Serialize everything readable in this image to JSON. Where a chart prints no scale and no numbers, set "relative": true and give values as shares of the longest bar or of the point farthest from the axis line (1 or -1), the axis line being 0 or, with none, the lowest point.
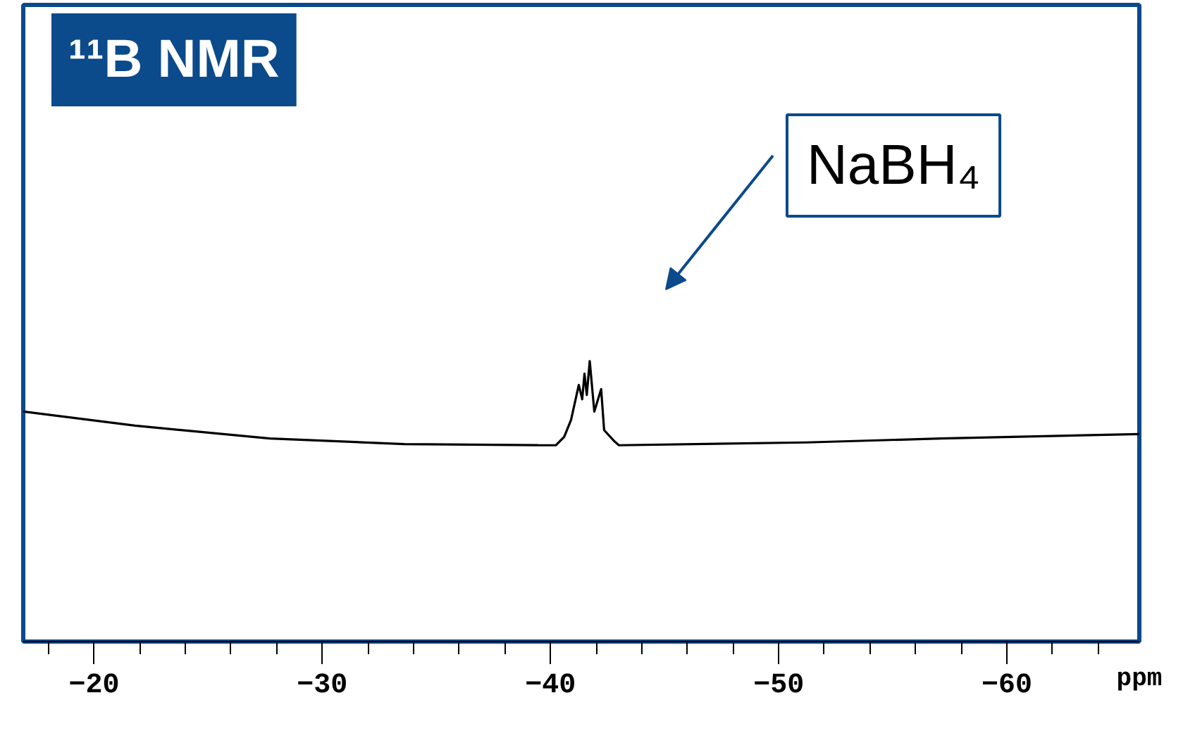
{
  "chart_data": {
    "type": "line",
    "title": "¹¹B NMR",
    "xlabel": "ppm",
    "relative": true,
    "xlim": [
      -16.9,
      -65.8
    ],
    "xticks": [
      {
        "value": -18,
        "label": null
      },
      -20,
      {
        "value": -22,
        "label": null
      },
      {
        "value": -24,
        "label": null
      },
      {
        "value": -26,
        "label": null
      },
      {
        "value": -28,
        "label": null
      },
      -30,
      {
        "value": -32,
        "label": null
      },
      {
        "value": -34,
        "label": null
      },
      {
        "value": -36,
        "label": null
      },
      {
        "value": -38,
        "label": null
      },
      -40,
      {
        "value": -42,
        "label": null
      },
      {
        "value": -44,
        "label": null
      },
      {
        "value": -46,
        "label": null
      },
      {
        "value": -48,
        "label": null
      },
      -50,
      {
        "value": -52,
        "label": null
      },
      {
        "value": -54,
        "label": null
      },
      {
        "value": -56,
        "label": null
      },
      {
        "value": -58,
        "label": null
      },
      -60,
      {
        "value": -62,
        "label": null
      },
      {
        "value": -64,
        "label": null
      }
    ],
    "annotations": [
      "NaBH₄"
    ],
    "series": [
      {
        "color": "#000000",
        "x": [
          -16.9,
          -21.8,
          -27.7,
          -33.6,
          -39.5,
          -40.24,
          -40.6,
          -40.9,
          -41.24,
          -41.39,
          -41.49,
          -41.59,
          -41.72,
          -41.92,
          -42.22,
          -42.35,
          -42.8,
          -43.0,
          -51.2,
          -57.1,
          -65.8
        ],
        "values": [
          0.82,
          0.77,
          0.724,
          0.704,
          0.7,
          0.7,
          0.73,
          0.79,
          0.915,
          0.864,
          0.955,
          0.879,
          1.0,
          0.82,
          0.9,
          0.754,
          0.714,
          0.7,
          0.71,
          0.724,
          0.74
        ]
      }
    ]
  }
}
